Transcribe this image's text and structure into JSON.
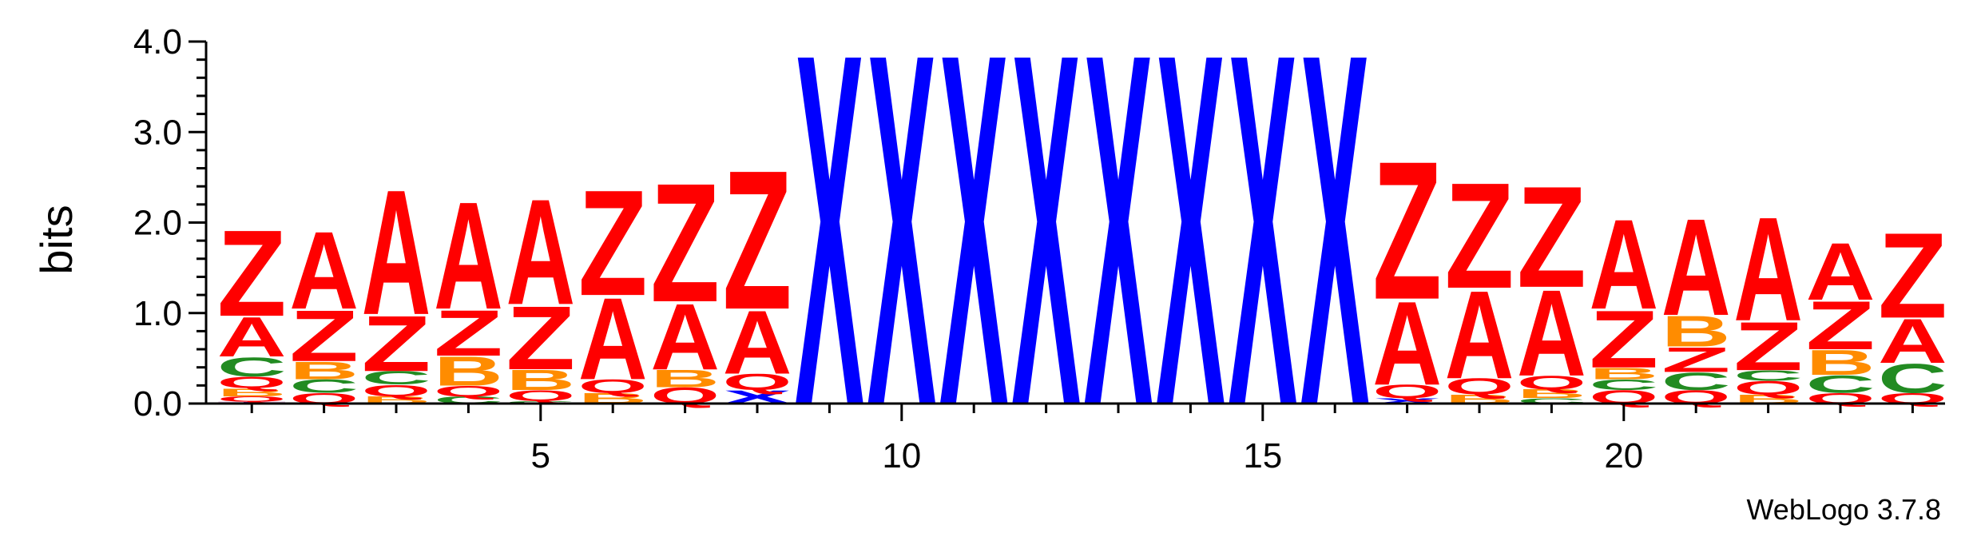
{
  "chart_data": {
    "type": "sequence-logo",
    "ylabel": "bits",
    "ylim": [
      0,
      4.0
    ],
    "y_ticks": [
      "0.0",
      "1.0",
      "2.0",
      "3.0",
      "4.0"
    ],
    "x_ticks": [
      "5",
      "10",
      "15",
      "20"
    ],
    "x_tick_positions": [
      5,
      10,
      15,
      20
    ],
    "credit": "WebLogo 3.7.8",
    "colors": {
      "Z": "#ff0000",
      "A": "#ff0000",
      "Q": "#ff0000",
      "B": "#ff8c00",
      "C": "#228b22",
      "X": "#0000ff",
      "T": "#800080"
    },
    "positions": [
      {
        "pos": 1,
        "stack": [
          {
            "letter": "T",
            "bits": 0.02
          },
          {
            "letter": "Q",
            "bits": 0.06
          },
          {
            "letter": "B",
            "bits": 0.09
          },
          {
            "letter": "Q",
            "bits": 0.13
          },
          {
            "letter": "C",
            "bits": 0.22
          },
          {
            "letter": "A",
            "bits": 0.45
          },
          {
            "letter": "Z",
            "bits": 0.98
          }
        ]
      },
      {
        "pos": 2,
        "stack": [
          {
            "letter": "Q",
            "bits": 0.12
          },
          {
            "letter": "C",
            "bits": 0.15
          },
          {
            "letter": "B",
            "bits": 0.2
          },
          {
            "letter": "Z",
            "bits": 0.58
          },
          {
            "letter": "A",
            "bits": 0.88
          }
        ]
      },
      {
        "pos": 3,
        "stack": [
          {
            "letter": "B",
            "bits": 0.08
          },
          {
            "letter": "Q",
            "bits": 0.13
          },
          {
            "letter": "C",
            "bits": 0.15
          },
          {
            "letter": "Z",
            "bits": 0.63
          },
          {
            "letter": "A",
            "bits": 1.42
          }
        ]
      },
      {
        "pos": 4,
        "stack": [
          {
            "letter": "C",
            "bits": 0.08
          },
          {
            "letter": "Q",
            "bits": 0.12
          },
          {
            "letter": "B",
            "bits": 0.33
          },
          {
            "letter": "Z",
            "bits": 0.52
          },
          {
            "letter": "A",
            "bits": 1.22
          }
        ]
      },
      {
        "pos": 5,
        "stack": [
          {
            "letter": "C",
            "bits": 0.03
          },
          {
            "letter": "Q",
            "bits": 0.12
          },
          {
            "letter": "B",
            "bits": 0.23
          },
          {
            "letter": "Z",
            "bits": 0.72
          },
          {
            "letter": "A",
            "bits": 1.2
          }
        ]
      },
      {
        "pos": 6,
        "stack": [
          {
            "letter": "B",
            "bits": 0.12
          },
          {
            "letter": "Q",
            "bits": 0.15
          },
          {
            "letter": "A",
            "bits": 0.93
          },
          {
            "letter": "Z",
            "bits": 1.2
          }
        ]
      },
      {
        "pos": 7,
        "stack": [
          {
            "letter": "Q",
            "bits": 0.18
          },
          {
            "letter": "B",
            "bits": 0.2
          },
          {
            "letter": "A",
            "bits": 0.75
          },
          {
            "letter": "Z",
            "bits": 1.35
          }
        ]
      },
      {
        "pos": 8,
        "stack": [
          {
            "letter": "X",
            "bits": 0.15
          },
          {
            "letter": "Q",
            "bits": 0.18
          },
          {
            "letter": "A",
            "bits": 0.72
          },
          {
            "letter": "Z",
            "bits": 1.58
          }
        ]
      },
      {
        "pos": 9,
        "stack": [
          {
            "letter": "X",
            "bits": 4.0
          }
        ]
      },
      {
        "pos": 10,
        "stack": [
          {
            "letter": "X",
            "bits": 4.0
          }
        ]
      },
      {
        "pos": 11,
        "stack": [
          {
            "letter": "X",
            "bits": 4.0
          }
        ]
      },
      {
        "pos": 12,
        "stack": [
          {
            "letter": "X",
            "bits": 4.0
          }
        ]
      },
      {
        "pos": 13,
        "stack": [
          {
            "letter": "X",
            "bits": 4.0
          }
        ]
      },
      {
        "pos": 14,
        "stack": [
          {
            "letter": "X",
            "bits": 4.0
          }
        ]
      },
      {
        "pos": 15,
        "stack": [
          {
            "letter": "X",
            "bits": 4.0
          }
        ]
      },
      {
        "pos": 16,
        "stack": [
          {
            "letter": "X",
            "bits": 4.0
          }
        ]
      },
      {
        "pos": 17,
        "stack": [
          {
            "letter": "X",
            "bits": 0.06
          },
          {
            "letter": "Q",
            "bits": 0.15
          },
          {
            "letter": "A",
            "bits": 0.95
          },
          {
            "letter": "Z",
            "bits": 1.57
          }
        ]
      },
      {
        "pos": 18,
        "stack": [
          {
            "letter": "B",
            "bits": 0.1
          },
          {
            "letter": "Q",
            "bits": 0.18
          },
          {
            "letter": "A",
            "bits": 1.0
          },
          {
            "letter": "Z",
            "bits": 1.2
          }
        ]
      },
      {
        "pos": 19,
        "stack": [
          {
            "letter": "C",
            "bits": 0.06
          },
          {
            "letter": "B",
            "bits": 0.1
          },
          {
            "letter": "Q",
            "bits": 0.15
          },
          {
            "letter": "A",
            "bits": 0.98
          },
          {
            "letter": "Z",
            "bits": 1.15
          }
        ]
      },
      {
        "pos": 20,
        "stack": [
          {
            "letter": "Q",
            "bits": 0.15
          },
          {
            "letter": "C",
            "bits": 0.12
          },
          {
            "letter": "B",
            "bits": 0.13
          },
          {
            "letter": "Z",
            "bits": 0.65
          },
          {
            "letter": "A",
            "bits": 1.02
          }
        ]
      },
      {
        "pos": 21,
        "stack": [
          {
            "letter": "Q",
            "bits": 0.15
          },
          {
            "letter": "C",
            "bits": 0.2
          },
          {
            "letter": "Z",
            "bits": 0.28
          },
          {
            "letter": "B",
            "bits": 0.35
          },
          {
            "letter": "A",
            "bits": 1.1
          }
        ]
      },
      {
        "pos": 22,
        "stack": [
          {
            "letter": "B",
            "bits": 0.1
          },
          {
            "letter": "Q",
            "bits": 0.15
          },
          {
            "letter": "C",
            "bits": 0.12
          },
          {
            "letter": "Z",
            "bits": 0.55
          },
          {
            "letter": "A",
            "bits": 1.18
          }
        ]
      },
      {
        "pos": 23,
        "stack": [
          {
            "letter": "Q",
            "bits": 0.12
          },
          {
            "letter": "C",
            "bits": 0.2
          },
          {
            "letter": "B",
            "bits": 0.28
          },
          {
            "letter": "Z",
            "bits": 0.55
          },
          {
            "letter": "A",
            "bits": 0.65
          }
        ]
      },
      {
        "pos": 24,
        "stack": [
          {
            "letter": "Q",
            "bits": 0.12
          },
          {
            "letter": "C",
            "bits": 0.33
          },
          {
            "letter": "A",
            "bits": 0.5
          },
          {
            "letter": "Z",
            "bits": 0.97
          }
        ]
      }
    ]
  }
}
